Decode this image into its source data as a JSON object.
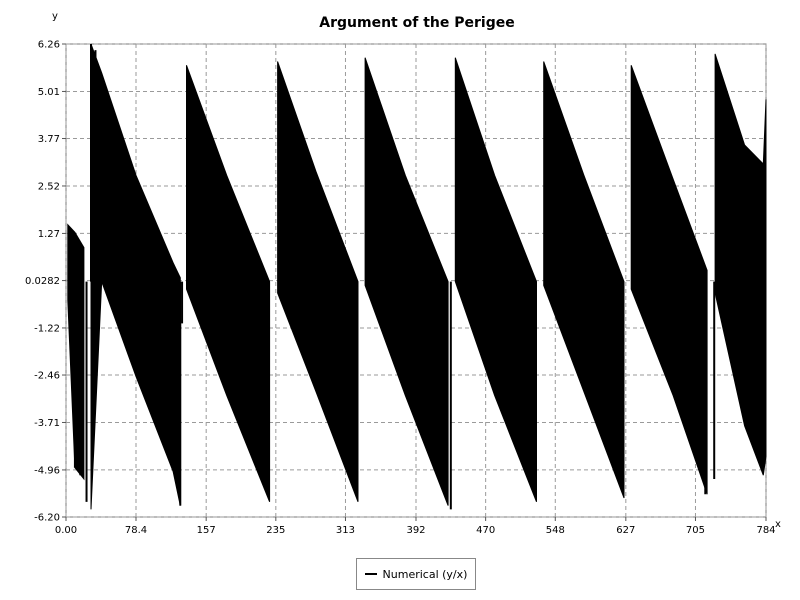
{
  "chart_data": {
    "type": "line",
    "title": "Argument of the Perigee",
    "xlabel": "x",
    "ylabel": "y",
    "xlim": [
      0,
      784
    ],
    "ylim": [
      -6.2,
      6.26
    ],
    "x_ticks": [
      "0.00",
      "78.4",
      "157",
      "235",
      "313",
      "392",
      "470",
      "548",
      "627",
      "705",
      "784"
    ],
    "y_ticks": [
      "6.26",
      "5.01",
      "3.77",
      "2.52",
      "1.27",
      "0.0282",
      "-1.22",
      "-2.46",
      "-3.71",
      "-4.96",
      "-6.20"
    ],
    "x_tick_values": [
      0,
      78.4,
      157,
      235,
      313,
      392,
      470,
      548,
      627,
      705,
      784
    ],
    "y_tick_values": [
      6.26,
      5.01,
      3.77,
      2.52,
      1.27,
      0.0282,
      -1.22,
      -2.46,
      -3.71,
      -4.96,
      -6.2
    ],
    "grid": true,
    "legend_position": "bottom-center",
    "series": [
      {
        "name": "Numerical (y/x)",
        "color": "#000000",
        "envelope": [
          {
            "x": 2,
            "upper": 1.5,
            "lower": -0.5
          },
          {
            "x": 10,
            "upper": 1.3,
            "lower": -4.9
          },
          {
            "x": 20,
            "upper": 0.9,
            "lower": -5.2
          },
          {
            "x": 28,
            "upper": 6.26,
            "lower": -6.0
          },
          {
            "x": 40,
            "upper": 5.5,
            "lower": 0.0
          },
          {
            "x": 78.4,
            "upper": 2.8,
            "lower": -2.5
          },
          {
            "x": 120,
            "upper": 0.5,
            "lower": -5.0
          },
          {
            "x": 128,
            "upper": 0.1,
            "lower": -5.9
          },
          {
            "x": 135,
            "upper": 5.7,
            "lower": -0.2
          },
          {
            "x": 180,
            "upper": 2.8,
            "lower": -3.0
          },
          {
            "x": 228,
            "upper": 0.0,
            "lower": -5.8
          },
          {
            "x": 237,
            "upper": 5.8,
            "lower": -0.3
          },
          {
            "x": 280,
            "upper": 2.9,
            "lower": -2.9
          },
          {
            "x": 327,
            "upper": 0.0,
            "lower": -5.8
          },
          {
            "x": 335,
            "upper": 5.9,
            "lower": -0.1
          },
          {
            "x": 380,
            "upper": 2.8,
            "lower": -3.0
          },
          {
            "x": 428,
            "upper": 0.0,
            "lower": -5.9
          },
          {
            "x": 436,
            "upper": 5.9,
            "lower": 0.0
          },
          {
            "x": 480,
            "upper": 2.8,
            "lower": -3.0
          },
          {
            "x": 527,
            "upper": 0.0,
            "lower": -5.8
          },
          {
            "x": 535,
            "upper": 5.8,
            "lower": -0.1
          },
          {
            "x": 580,
            "upper": 2.8,
            "lower": -2.9
          },
          {
            "x": 625,
            "upper": 0.0,
            "lower": -5.7
          },
          {
            "x": 633,
            "upper": 5.7,
            "lower": -0.2
          },
          {
            "x": 680,
            "upper": 2.7,
            "lower": -3.0
          },
          {
            "x": 718,
            "upper": 0.3,
            "lower": -5.6
          },
          {
            "x": 727,
            "upper": 6.0,
            "lower": -0.3
          },
          {
            "x": 760,
            "upper": 3.6,
            "lower": -3.8
          },
          {
            "x": 781,
            "upper": 3.1,
            "lower": -5.1
          },
          {
            "x": 784,
            "upper": 4.8,
            "lower": -4.6
          }
        ],
        "spikes": [
          {
            "x": 28,
            "y": 6.26
          },
          {
            "x": 33,
            "y": 6.1
          },
          {
            "x": 37,
            "y": 5.6
          },
          {
            "x": 10,
            "y": -4.9
          },
          {
            "x": 16,
            "y": -5.1
          },
          {
            "x": 23,
            "y": -5.8
          },
          {
            "x": 128,
            "y": -5.9
          },
          {
            "x": 130,
            "y": -1.1
          },
          {
            "x": 120,
            "y": -4.0
          },
          {
            "x": 431,
            "y": -6.0
          },
          {
            "x": 716,
            "y": -5.6
          },
          {
            "x": 726,
            "y": -5.2
          }
        ]
      }
    ]
  }
}
